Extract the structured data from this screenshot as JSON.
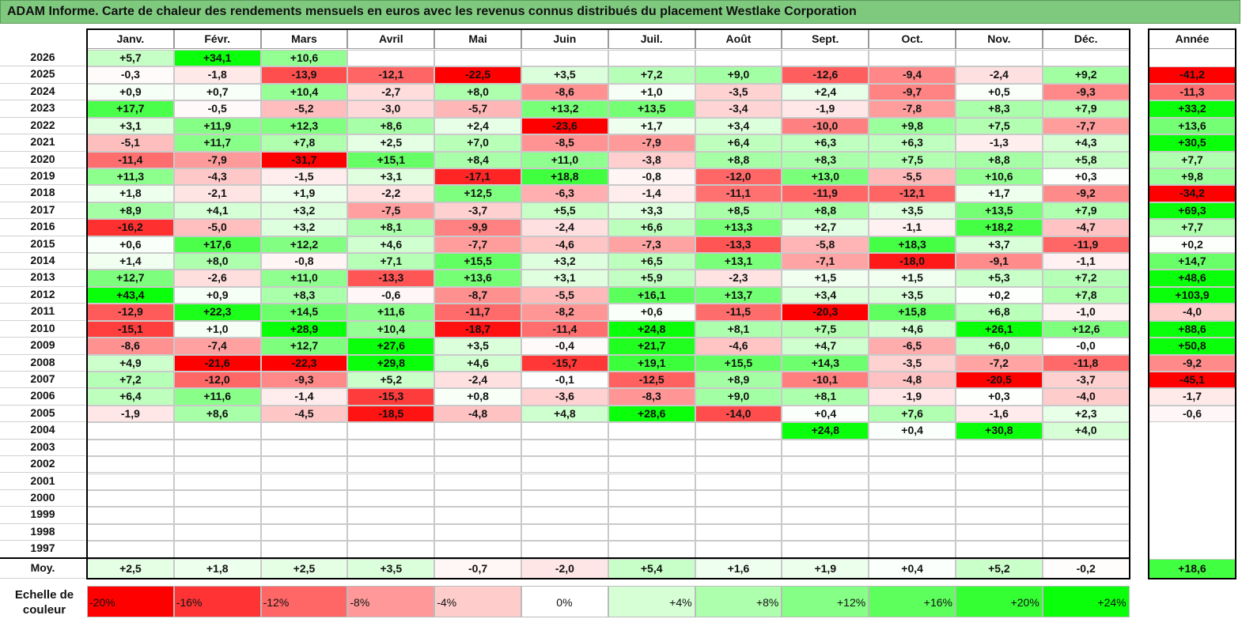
{
  "title": "ADAM Informe. Carte de chaleur des rendements mensuels en euros avec les revenus connus distribués du placement Westlake Corporation",
  "chart_data": {
    "type": "heatmap",
    "months": [
      "Janv.",
      "Févr.",
      "Mars",
      "Avril",
      "Mai",
      "Juin",
      "Juil.",
      "Août",
      "Sept.",
      "Oct.",
      "Nov.",
      "Déc."
    ],
    "year_header": "Année",
    "rows": [
      {
        "year": "2026",
        "values": [
          "+5,7",
          "+34,1",
          "+10,6",
          null,
          null,
          null,
          null,
          null,
          null,
          null,
          null,
          null
        ],
        "annual": null
      },
      {
        "year": "2025",
        "values": [
          "-0,3",
          "-1,8",
          "-13,9",
          "-12,1",
          "-22,5",
          "+3,5",
          "+7,2",
          "+9,0",
          "-12,6",
          "-9,4",
          "-2,4",
          "+9,2"
        ],
        "annual": "-41,2"
      },
      {
        "year": "2024",
        "values": [
          "+0,9",
          "+0,7",
          "+10,4",
          "-2,7",
          "+8,0",
          "-8,6",
          "+1,0",
          "-3,5",
          "+2,4",
          "-9,7",
          "+0,5",
          "-9,3"
        ],
        "annual": "-11,3"
      },
      {
        "year": "2023",
        "values": [
          "+17,7",
          "-0,5",
          "-5,2",
          "-3,0",
          "-5,7",
          "+13,2",
          "+13,5",
          "-3,4",
          "-1,9",
          "-7,8",
          "+8,3",
          "+7,9"
        ],
        "annual": "+33,2"
      },
      {
        "year": "2022",
        "values": [
          "+3,1",
          "+11,9",
          "+12,3",
          "+8,6",
          "+2,4",
          "-23,6",
          "+1,7",
          "+3,4",
          "-10,0",
          "+9,8",
          "+7,5",
          "-7,7"
        ],
        "annual": "+13,6"
      },
      {
        "year": "2021",
        "values": [
          "-5,1",
          "+11,7",
          "+7,8",
          "+2,5",
          "+7,0",
          "-8,5",
          "-7,9",
          "+6,4",
          "+6,3",
          "+6,3",
          "-1,3",
          "+4,3"
        ],
        "annual": "+30,5"
      },
      {
        "year": "2020",
        "values": [
          "-11,4",
          "-7,9",
          "-31,7",
          "+15,1",
          "+8,4",
          "+11,0",
          "-3,8",
          "+8,8",
          "+8,3",
          "+7,5",
          "+8,8",
          "+5,8"
        ],
        "annual": "+7,7"
      },
      {
        "year": "2019",
        "values": [
          "+11,3",
          "-4,3",
          "-1,5",
          "+3,1",
          "-17,1",
          "+18,8",
          "-0,8",
          "-12,0",
          "+13,0",
          "-5,5",
          "+10,6",
          "+0,3"
        ],
        "annual": "+9,8"
      },
      {
        "year": "2018",
        "values": [
          "+1,8",
          "-2,1",
          "+1,9",
          "-2,2",
          "+12,5",
          "-6,3",
          "-1,4",
          "-11,1",
          "-11,9",
          "-12,1",
          "+1,7",
          "-9,2"
        ],
        "annual": "-34,2"
      },
      {
        "year": "2017",
        "values": [
          "+8,9",
          "+4,1",
          "+3,2",
          "-7,5",
          "-3,7",
          "+5,5",
          "+3,3",
          "+8,5",
          "+8,8",
          "+3,5",
          "+13,5",
          "+7,9"
        ],
        "annual": "+69,3"
      },
      {
        "year": "2016",
        "values": [
          "-16,2",
          "-5,0",
          "+3,2",
          "+8,1",
          "-9,9",
          "-2,4",
          "+6,6",
          "+13,3",
          "+2,7",
          "-1,1",
          "+18,2",
          "-4,7"
        ],
        "annual": "+7,7"
      },
      {
        "year": "2015",
        "values": [
          "+0,6",
          "+17,6",
          "+12,2",
          "+4,6",
          "-7,7",
          "-4,6",
          "-7,3",
          "-13,3",
          "-5,8",
          "+18,3",
          "+3,7",
          "-11,9"
        ],
        "annual": "+0,2"
      },
      {
        "year": "2014",
        "values": [
          "+1,4",
          "+8,0",
          "-0,8",
          "+7,1",
          "+15,5",
          "+3,2",
          "+6,5",
          "+13,1",
          "-7,1",
          "-18,0",
          "-9,1",
          "-1,1"
        ],
        "annual": "+14,7"
      },
      {
        "year": "2013",
        "values": [
          "+12,7",
          "-2,6",
          "+11,0",
          "-13,3",
          "+13,6",
          "+3,1",
          "+5,9",
          "-2,3",
          "+1,5",
          "+1,5",
          "+5,3",
          "+7,2"
        ],
        "annual": "+48,6"
      },
      {
        "year": "2012",
        "values": [
          "+43,4",
          "+0,9",
          "+8,3",
          "-0,6",
          "-8,7",
          "-5,5",
          "+16,1",
          "+13,7",
          "+3,4",
          "+3,5",
          "+0,2",
          "+7,8"
        ],
        "annual": "+103,9"
      },
      {
        "year": "2011",
        "values": [
          "-12,9",
          "+22,3",
          "+14,5",
          "+11,6",
          "-11,7",
          "-8,2",
          "+0,6",
          "-11,5",
          "-20,3",
          "+15,8",
          "+6,8",
          "-1,0"
        ],
        "annual": "-4,0"
      },
      {
        "year": "2010",
        "values": [
          "-15,1",
          "+1,0",
          "+28,9",
          "+10,4",
          "-18,7",
          "-11,4",
          "+24,8",
          "+8,1",
          "+7,5",
          "+4,6",
          "+26,1",
          "+12,6"
        ],
        "annual": "+88,6"
      },
      {
        "year": "2009",
        "values": [
          "-8,6",
          "-7,4",
          "+12,7",
          "+27,6",
          "+3,5",
          "-0,4",
          "+21,7",
          "-4,6",
          "+4,7",
          "-6,5",
          "+6,0",
          "-0,0"
        ],
        "annual": "+50,8"
      },
      {
        "year": "2008",
        "values": [
          "+4,9",
          "-21,6",
          "-22,3",
          "+29,8",
          "+4,6",
          "-15,7",
          "+19,1",
          "+15,5",
          "+14,3",
          "-3,5",
          "-7,2",
          "-11,8"
        ],
        "annual": "-9,2"
      },
      {
        "year": "2007",
        "values": [
          "+7,2",
          "-12,0",
          "-9,3",
          "+5,2",
          "-2,4",
          "-0,1",
          "-12,5",
          "+8,9",
          "-10,1",
          "-4,8",
          "-20,5",
          "-3,7"
        ],
        "annual": "-45,1"
      },
      {
        "year": "2006",
        "values": [
          "+6,4",
          "+11,6",
          "-1,4",
          "-15,3",
          "+0,8",
          "-3,6",
          "-8,3",
          "+9,0",
          "+8,1",
          "-1,9",
          "+0,3",
          "-4,0"
        ],
        "annual": "-1,7"
      },
      {
        "year": "2005",
        "values": [
          "-1,9",
          "+8,6",
          "-4,5",
          "-18,5",
          "-4,8",
          "+4,8",
          "+28,6",
          "-14,0",
          "+0,4",
          "+7,6",
          "-1,6",
          "+2,3"
        ],
        "annual": "-0,6"
      },
      {
        "year": "2004",
        "values": [
          null,
          null,
          null,
          null,
          null,
          null,
          null,
          null,
          "+24,8",
          "+0,4",
          "+30,8",
          "+4,0"
        ],
        "annual": null
      },
      {
        "year": "2003",
        "values": [
          null,
          null,
          null,
          null,
          null,
          null,
          null,
          null,
          null,
          null,
          null,
          null
        ],
        "annual": null
      },
      {
        "year": "2002",
        "values": [
          null,
          null,
          null,
          null,
          null,
          null,
          null,
          null,
          null,
          null,
          null,
          null
        ],
        "annual": null
      },
      {
        "year": "2001",
        "values": [
          null,
          null,
          null,
          null,
          null,
          null,
          null,
          null,
          null,
          null,
          null,
          null
        ],
        "annual": null
      },
      {
        "year": "2000",
        "values": [
          null,
          null,
          null,
          null,
          null,
          null,
          null,
          null,
          null,
          null,
          null,
          null
        ],
        "annual": null
      },
      {
        "year": "1999",
        "values": [
          null,
          null,
          null,
          null,
          null,
          null,
          null,
          null,
          null,
          null,
          null,
          null
        ],
        "annual": null
      },
      {
        "year": "1998",
        "values": [
          null,
          null,
          null,
          null,
          null,
          null,
          null,
          null,
          null,
          null,
          null,
          null
        ],
        "annual": null
      },
      {
        "year": "1997",
        "values": [
          null,
          null,
          null,
          null,
          null,
          null,
          null,
          null,
          null,
          null,
          null,
          null
        ],
        "annual": null
      }
    ],
    "average": {
      "label": "Moy.",
      "values": [
        "+2,5",
        "+1,8",
        "+2,5",
        "+3,5",
        "-0,7",
        "-2,0",
        "+5,4",
        "+1,6",
        "+1,9",
        "+0,4",
        "+5,2",
        "-0,2"
      ],
      "annual": "+18,6"
    },
    "color_scale": {
      "label": "Echelle de couleur",
      "steps": [
        {
          "label": "-20%",
          "value": -20,
          "color": "#ff0000"
        },
        {
          "label": "-16%",
          "value": -16,
          "color": "#ff3333"
        },
        {
          "label": "-12%",
          "value": -12,
          "color": "#ff6666"
        },
        {
          "label": "-8%",
          "value": -8,
          "color": "#ff9999"
        },
        {
          "label": "-4%",
          "value": -4,
          "color": "#ffcccc"
        },
        {
          "label": "0%",
          "value": 0,
          "color": "#ffffff"
        },
        {
          "label": "+4%",
          "value": 4,
          "color": "#d6ffd6"
        },
        {
          "label": "+8%",
          "value": 8,
          "color": "#adffad"
        },
        {
          "label": "+12%",
          "value": 12,
          "color": "#85ff85"
        },
        {
          "label": "+16%",
          "value": 16,
          "color": "#5cff5c"
        },
        {
          "label": "+20%",
          "value": 20,
          "color": "#33ff33"
        },
        {
          "label": "+24%",
          "value": 24,
          "color": "#0aff0a"
        }
      ]
    }
  }
}
